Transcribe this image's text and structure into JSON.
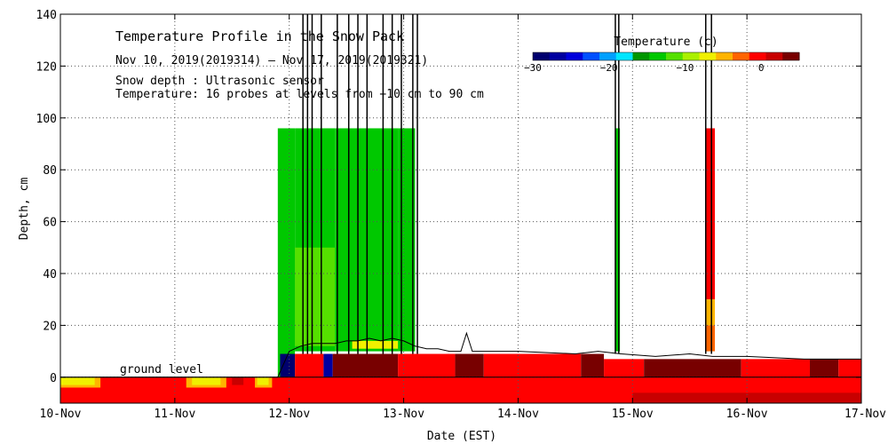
{
  "chart_data": {
    "type": "heatmap",
    "title": "Temperature Profile in the Snow Pack",
    "subtitle": "Nov 10, 2019(2019314) – Nov 17, 2019(2019321)",
    "notes": [
      "Snow depth : Ultrasonic sensor",
      "Temperature: 16 probes at levels from −10 cm to 90 cm"
    ],
    "xlabel": "Date (EST)",
    "ylabel": "Depth, cm",
    "x_ticks": [
      "10-Nov",
      "11-Nov",
      "12-Nov",
      "13-Nov",
      "14-Nov",
      "15-Nov",
      "16-Nov",
      "17-Nov"
    ],
    "xlim_days": [
      10,
      17
    ],
    "ylim": [
      -10,
      140
    ],
    "y_ticks": [
      0,
      20,
      40,
      60,
      80,
      100,
      120,
      140
    ],
    "grid": true,
    "ground_label": "ground level",
    "colorbar": {
      "title": "Temperature (c)",
      "range": [
        -30,
        5
      ],
      "ticks": [
        "−30",
        "−20",
        "−10",
        "0"
      ],
      "tick_values": [
        -30,
        -20,
        -10,
        0
      ],
      "colors": [
        "#00006e",
        "#0000a0",
        "#0000dc",
        "#0050ff",
        "#00a0ff",
        "#00e6ff",
        "#009600",
        "#00c800",
        "#55e000",
        "#aaf000",
        "#f0f000",
        "#ffb400",
        "#ff6400",
        "#ff0000",
        "#c80000",
        "#780000"
      ]
    },
    "temperature_blocks": [
      {
        "x0": 11.9,
        "x1": 12.05,
        "y0": -10,
        "y1": 96,
        "color": "#00c800"
      },
      {
        "x0": 12.05,
        "x1": 12.4,
        "y0": 10,
        "y1": 96,
        "color": "#00c800"
      },
      {
        "x0": 12.4,
        "x1": 12.95,
        "y0": 10,
        "y1": 96,
        "color": "#00c800"
      },
      {
        "x0": 12.95,
        "x1": 13.1,
        "y0": 10,
        "y1": 96,
        "color": "#00c800"
      },
      {
        "x0": 12.05,
        "x1": 12.4,
        "y0": 12,
        "y1": 50,
        "color": "#55e000"
      },
      {
        "x0": 12.55,
        "x1": 12.95,
        "y0": 11,
        "y1": 14,
        "color": "#f0f000"
      },
      {
        "x0": 14.85,
        "x1": 14.89,
        "y0": 10,
        "y1": 96,
        "color": "#00c800"
      },
      {
        "x0": 15.64,
        "x1": 15.72,
        "y0": 30,
        "y1": 96,
        "color": "#ff0000"
      },
      {
        "x0": 15.64,
        "x1": 15.72,
        "y0": 20,
        "y1": 30,
        "color": "#ffb400"
      },
      {
        "x0": 15.64,
        "x1": 15.72,
        "y0": 10,
        "y1": 20,
        "color": "#ff6400"
      },
      {
        "x0": 11.92,
        "x1": 12.05,
        "y0": 0,
        "y1": 9,
        "color": "#00006e"
      },
      {
        "x0": 12.05,
        "x1": 12.3,
        "y0": 0,
        "y1": 9,
        "color": "#ff0000"
      },
      {
        "x0": 12.3,
        "x1": 12.38,
        "y0": 0,
        "y1": 9,
        "color": "#0000a0"
      },
      {
        "x0": 12.38,
        "x1": 12.95,
        "y0": 0,
        "y1": 9,
        "color": "#780000"
      },
      {
        "x0": 12.95,
        "x1": 13.45,
        "y0": 0,
        "y1": 9,
        "color": "#ff0000"
      },
      {
        "x0": 13.45,
        "x1": 13.7,
        "y0": 0,
        "y1": 9,
        "color": "#780000"
      },
      {
        "x0": 13.7,
        "x1": 14.55,
        "y0": 0,
        "y1": 9,
        "color": "#ff0000"
      },
      {
        "x0": 14.55,
        "x1": 14.75,
        "y0": 0,
        "y1": 9,
        "color": "#780000"
      },
      {
        "x0": 14.75,
        "x1": 15.1,
        "y0": 0,
        "y1": 7,
        "color": "#ff0000"
      },
      {
        "x0": 15.1,
        "x1": 15.95,
        "y0": 0,
        "y1": 7,
        "color": "#780000"
      },
      {
        "x0": 15.95,
        "x1": 16.55,
        "y0": 0,
        "y1": 7,
        "color": "#ff0000"
      },
      {
        "x0": 16.55,
        "x1": 16.8,
        "y0": 0,
        "y1": 7,
        "color": "#780000"
      },
      {
        "x0": 16.8,
        "x1": 17,
        "y0": 0,
        "y1": 7,
        "color": "#ff0000"
      },
      {
        "x0": 10,
        "x1": 17,
        "y0": -10,
        "y1": 0,
        "color": "#ff0000"
      },
      {
        "x0": 10,
        "x1": 10.35,
        "y0": -4,
        "y1": 0,
        "color": "#ffb400"
      },
      {
        "x0": 10,
        "x1": 10.3,
        "y0": -3,
        "y1": 0,
        "color": "#f0f000"
      },
      {
        "x0": 11.1,
        "x1": 11.45,
        "y0": -4,
        "y1": 0,
        "color": "#ffb400"
      },
      {
        "x0": 11.15,
        "x1": 11.4,
        "y0": -3,
        "y1": 0,
        "color": "#f0f000"
      },
      {
        "x0": 11.5,
        "x1": 11.6,
        "y0": -3,
        "y1": 0,
        "color": "#c80000"
      },
      {
        "x0": 11.7,
        "x1": 11.85,
        "y0": -4,
        "y1": 0,
        "color": "#ffb400"
      },
      {
        "x0": 11.72,
        "x1": 11.82,
        "y0": -3,
        "y1": 0,
        "color": "#f0f000"
      },
      {
        "x0": 12.2,
        "x1": 13.3,
        "y0": -10,
        "y1": -6,
        "color": "#ff0000"
      },
      {
        "x0": 15.0,
        "x1": 17,
        "y0": -10,
        "y1": -6,
        "color": "#c80000"
      }
    ],
    "snow_depth_series": {
      "name": "Snow depth",
      "x": [
        10.0,
        11.9,
        12.0,
        12.1,
        12.2,
        12.3,
        12.4,
        12.5,
        12.6,
        12.7,
        12.8,
        12.9,
        13.0,
        13.1,
        13.2,
        13.3,
        13.4,
        13.5,
        13.55,
        13.6,
        13.7,
        14.0,
        14.5,
        14.7,
        14.9,
        15.2,
        15.5,
        15.7,
        16.0,
        16.5,
        17.0
      ],
      "y": [
        0,
        0,
        10,
        12,
        13,
        13,
        13,
        14,
        14,
        15,
        14,
        15,
        14,
        12,
        11,
        11,
        10,
        10,
        17,
        10,
        10,
        10,
        9,
        10,
        9,
        8,
        9,
        8,
        8,
        7,
        7
      ]
    },
    "spikes_x": [
      12.12,
      12.16,
      12.2,
      12.28,
      12.42,
      12.52,
      12.6,
      12.68,
      12.82,
      12.9,
      12.98,
      13.08,
      13.12,
      14.85,
      14.88,
      15.64,
      15.69
    ]
  }
}
